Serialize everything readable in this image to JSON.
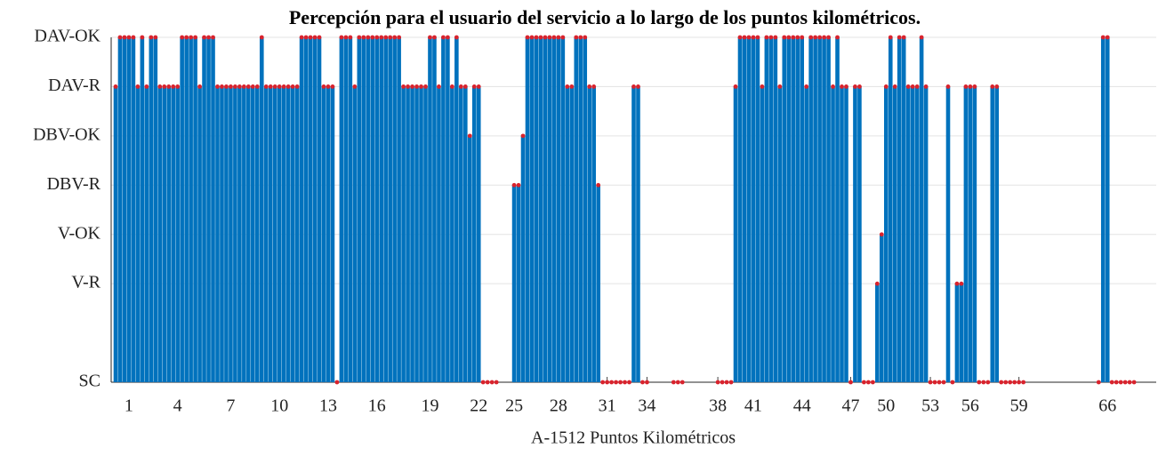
{
  "chart_data": {
    "type": "stem",
    "title": "Percepción para el usuario del servicio a lo largo de los puntos kilométricos.",
    "x_label": "A-1512 Puntos Kilométricos",
    "color": "#0072bd",
    "marker_color": "#d9232d",
    "grid": true,
    "xlim": [
      -1,
      235
    ],
    "ylim": [
      0,
      7
    ],
    "yticks": [
      {
        "value": 0,
        "label": "SC"
      },
      {
        "value": 2,
        "label": "V-R"
      },
      {
        "value": 3,
        "label": "V-OK"
      },
      {
        "value": 4,
        "label": "DBV-R"
      },
      {
        "value": 5,
        "label": "DBV-OK"
      },
      {
        "value": 6,
        "label": "DAV-R"
      },
      {
        "value": 7,
        "label": "DAV-OK"
      }
    ],
    "xticks": [
      {
        "value": 3,
        "label": "1"
      },
      {
        "value": 14,
        "label": "4"
      },
      {
        "value": 26,
        "label": "7"
      },
      {
        "value": 37,
        "label": "10"
      },
      {
        "value": 48,
        "label": "13"
      },
      {
        "value": 59,
        "label": "16"
      },
      {
        "value": 71,
        "label": "19"
      },
      {
        "value": 82,
        "label": "22"
      },
      {
        "value": 90,
        "label": "25"
      },
      {
        "value": 100,
        "label": "28"
      },
      {
        "value": 111,
        "label": "31"
      },
      {
        "value": 120,
        "label": "34"
      },
      {
        "value": 136,
        "label": "38"
      },
      {
        "value": 144,
        "label": "41"
      },
      {
        "value": 155,
        "label": "44"
      },
      {
        "value": 166,
        "label": "47"
      },
      {
        "value": 174,
        "label": "50"
      },
      {
        "value": 184,
        "label": "53"
      },
      {
        "value": 193,
        "label": "56"
      },
      {
        "value": 204,
        "label": "59"
      },
      {
        "value": 224,
        "label": "66"
      }
    ],
    "values": [
      6,
      7,
      7,
      7,
      7,
      6,
      7,
      6,
      7,
      7,
      6,
      6,
      6,
      6,
      6,
      7,
      7,
      7,
      7,
      6,
      7,
      7,
      7,
      6,
      6,
      6,
      6,
      6,
      6,
      6,
      6,
      6,
      6,
      7,
      6,
      6,
      6,
      6,
      6,
      6,
      6,
      6,
      7,
      7,
      7,
      7,
      7,
      6,
      6,
      6,
      0,
      7,
      7,
      7,
      6,
      7,
      7,
      7,
      7,
      7,
      7,
      7,
      7,
      7,
      7,
      6,
      6,
      6,
      6,
      6,
      6,
      7,
      7,
      6,
      7,
      7,
      6,
      7,
      6,
      6,
      5,
      6,
      6,
      0,
      0,
      0,
      0,
      null,
      null,
      null,
      4,
      4,
      5,
      7,
      7,
      7,
      7,
      7,
      7,
      7,
      7,
      7,
      6,
      6,
      7,
      7,
      7,
      6,
      6,
      4,
      0,
      0,
      0,
      0,
      0,
      0,
      0,
      6,
      6,
      0,
      0,
      null,
      null,
      null,
      null,
      null,
      0,
      0,
      0,
      null,
      null,
      null,
      null,
      null,
      null,
      null,
      0,
      0,
      0,
      0,
      6,
      7,
      7,
      7,
      7,
      7,
      6,
      7,
      7,
      7,
      6,
      7,
      7,
      7,
      7,
      7,
      6,
      7,
      7,
      7,
      7,
      7,
      6,
      7,
      6,
      6,
      0,
      6,
      6,
      0,
      0,
      0,
      2,
      3,
      6,
      7,
      6,
      7,
      7,
      6,
      6,
      6,
      7,
      6,
      0,
      0,
      0,
      0,
      6,
      0,
      2,
      2,
      6,
      6,
      6,
      0,
      0,
      0,
      6,
      6,
      0,
      0,
      0,
      0,
      0,
      0,
      null,
      null,
      null,
      null,
      null,
      null,
      null,
      null,
      null,
      null,
      null,
      null,
      null,
      null,
      null,
      null,
      0,
      7,
      7,
      0,
      0,
      0,
      0,
      0,
      0
    ]
  }
}
